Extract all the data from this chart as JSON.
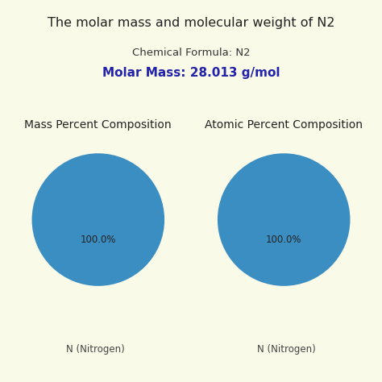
{
  "title": "The molar mass and molecular weight of N2",
  "chemical_formula_label": "Chemical Formula: N2",
  "molar_mass_label": "Molar Mass: 28.013 g/mol",
  "molar_mass_color": "#2222AA",
  "chemical_formula_color": "#333333",
  "background_color": "#FAFAE8",
  "pie_color": "#3B8EC1",
  "pie_values": [
    100.0
  ],
  "pie_label_inside": "100.0%",
  "pie_label_outside": "N (Nitrogen)",
  "chart1_title": "Mass Percent Composition",
  "chart2_title": "Atomic Percent Composition",
  "title_fontsize": 11.5,
  "subtitle_fontsize": 9.5,
  "molar_mass_fontsize": 11,
  "pie_title_fontsize": 10,
  "pie_label_fontsize": 8.5,
  "pie_outside_label_fontsize": 8.5
}
